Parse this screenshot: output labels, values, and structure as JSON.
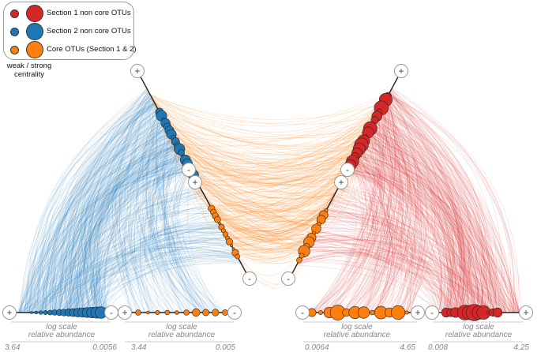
{
  "legend": {
    "items": [
      {
        "label": "Section 1 non core OTUs",
        "color": "#d62728"
      },
      {
        "label": "Section 2 non core OTUs",
        "color": "#1f77b4"
      },
      {
        "label": "Core OTUs (Section 1 & 2)",
        "color": "#ff7f0e"
      }
    ],
    "centrality_label_line1": "weak / strong",
    "centrality_label_line2": "centrality"
  },
  "axis_markers": {
    "plus": "+",
    "minus": "-"
  },
  "axes": [
    {
      "id": "s2-noncore",
      "color": "#1f77b4",
      "caption_line1": "log scale",
      "caption_line2": "relative abundance",
      "left_value": "3.64",
      "right_value": "0.0056"
    },
    {
      "id": "s2-core",
      "color": "#ff7f0e",
      "caption_line1": "log scale",
      "caption_line2": "relative abundance",
      "left_value": "3.44",
      "right_value": "0.005"
    },
    {
      "id": "s1-core",
      "color": "#ff7f0e",
      "caption_line1": "log scale",
      "caption_line2": "relative abundance",
      "left_value": "0.0064",
      "right_value": "4.65"
    },
    {
      "id": "s1-noncore",
      "color": "#d62728",
      "caption_line1": "log scale",
      "caption_line2": "relative abundance",
      "left_value": "0.008",
      "right_value": "4.25"
    }
  ],
  "colors": {
    "section1": "#d62728",
    "section2": "#1f77b4",
    "core": "#ff7f0e",
    "axis": "#222222",
    "caption": "#888888"
  }
}
